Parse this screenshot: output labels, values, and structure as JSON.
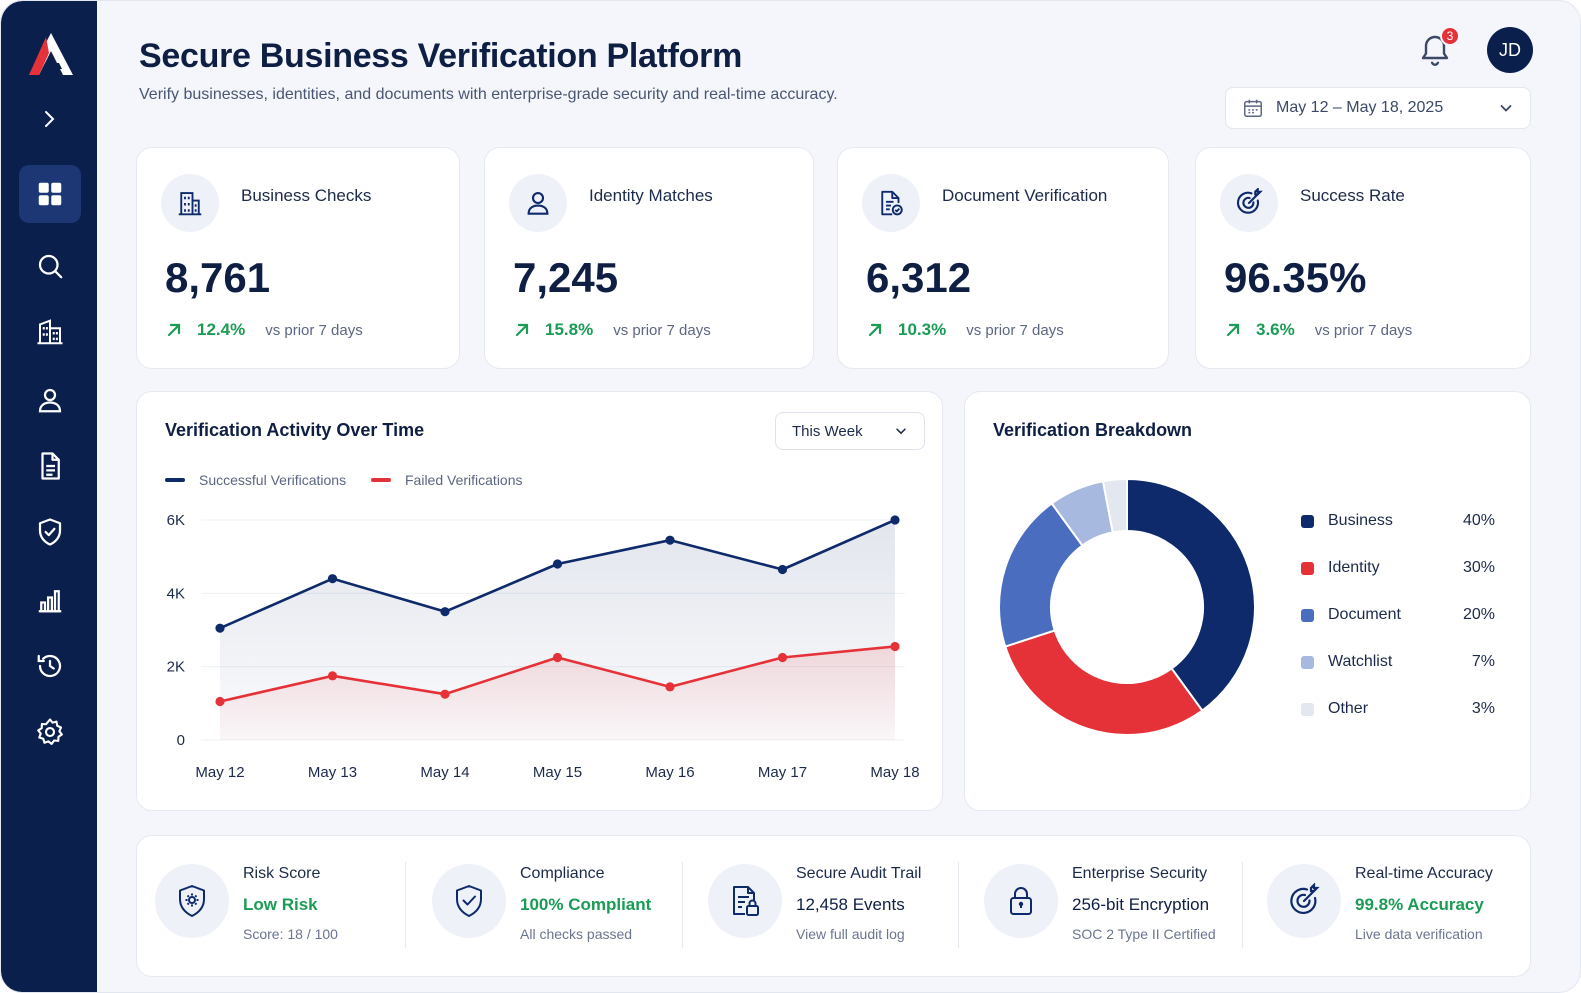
{
  "header": {
    "title": "Secure Business Verification Platform",
    "subtitle": "Verify businesses, identities, and documents with enterprise-grade security and real-time accuracy.",
    "notifications": "3",
    "avatar": "JD",
    "date_range": "May 12 – May 18, 2025"
  },
  "sidebar": {
    "items": [
      "dashboard",
      "search",
      "businesses",
      "identity",
      "documents",
      "security",
      "analytics",
      "history",
      "settings"
    ],
    "active": "dashboard"
  },
  "kpis": [
    {
      "label": "Business Checks",
      "value": "8,761",
      "change": "12.4%",
      "compare": "vs prior 7 days"
    },
    {
      "label": "Identity Matches",
      "value": "7,245",
      "change": "15.8%",
      "compare": "vs prior 7 days"
    },
    {
      "label": "Document Verification",
      "value": "6,312",
      "change": "10.3%",
      "compare": "vs prior 7 days"
    },
    {
      "label": "Success Rate",
      "value": "96.35%",
      "change": "3.6%",
      "compare": "vs prior 7 days"
    }
  ],
  "activity": {
    "title": "Verification Activity Over Time",
    "period": "This Week"
  },
  "breakdown": {
    "title": "Verification Breakdown"
  },
  "chart_data": [
    {
      "type": "area",
      "title": "Verification Activity Over Time",
      "categories": [
        "May 12",
        "May 13",
        "May 14",
        "May 15",
        "May 16",
        "May 17",
        "May 18"
      ],
      "yticks": [
        "0",
        "2K",
        "4K",
        "6K"
      ],
      "ylim": [
        0,
        6000
      ],
      "grid": true,
      "legend": "top-left",
      "series": [
        {
          "name": "Successful Verifications",
          "color": "#0f2a6b",
          "values": [
            3050,
            4400,
            3500,
            4800,
            5450,
            4650,
            6000
          ]
        },
        {
          "name": "Failed Verifications",
          "color": "#e53238",
          "values": [
            1050,
            1750,
            1250,
            2250,
            1450,
            2250,
            2550
          ]
        }
      ]
    },
    {
      "type": "pie",
      "title": "Verification Breakdown",
      "legend": "right",
      "slices": [
        {
          "label": "Business",
          "value": 40,
          "display": "40%",
          "color": "#0f2a6b"
        },
        {
          "label": "Identity",
          "value": 30,
          "display": "30%",
          "color": "#e53238"
        },
        {
          "label": "Document",
          "value": 20,
          "display": "20%",
          "color": "#4a6dbf"
        },
        {
          "label": "Watchlist",
          "value": 7,
          "display": "7%",
          "color": "#a8b9e0"
        },
        {
          "label": "Other",
          "value": 3,
          "display": "3%",
          "color": "#e3e7ef"
        }
      ]
    }
  ],
  "footer": [
    {
      "title": "Risk Score",
      "status": "Low Risk",
      "detail": "Score: 18 / 100"
    },
    {
      "title": "Compliance",
      "status": "100% Compliant",
      "detail": "All checks passed"
    },
    {
      "title": "Secure Audit Trail",
      "status": "12,458 Events",
      "detail": "View full audit log"
    },
    {
      "title": "Enterprise Security",
      "status": "256-bit Encryption",
      "detail": "SOC 2 Type II Certified"
    },
    {
      "title": "Real-time Accuracy",
      "status": "99.8% Accuracy",
      "detail": "Live data verification"
    }
  ]
}
